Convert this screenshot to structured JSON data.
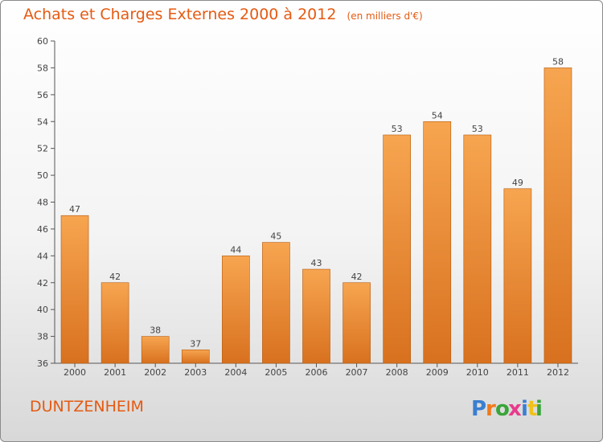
{
  "chart_data": {
    "type": "bar",
    "title": "Achats et Charges Externes 2000 à 2012",
    "subtitle": "(en milliers d'€)",
    "categories": [
      "2000",
      "2001",
      "2002",
      "2003",
      "2004",
      "2005",
      "2006",
      "2007",
      "2008",
      "2009",
      "2010",
      "2011",
      "2012"
    ],
    "values": [
      47,
      42,
      38,
      37,
      44,
      45,
      43,
      42,
      53,
      54,
      53,
      49,
      58
    ],
    "data_labels": [
      "47",
      "42",
      "38",
      "37",
      "44",
      "45",
      "43",
      "42",
      "53",
      "54",
      "53",
      "49",
      "58"
    ],
    "ylim": [
      36,
      60
    ],
    "yticks": [
      "36",
      "38",
      "40",
      "42",
      "44",
      "46",
      "48",
      "50",
      "52",
      "54",
      "56",
      "58",
      "60"
    ],
    "grid": false,
    "legend": "none",
    "bar_color_top": "#f7a550",
    "bar_color_bottom": "#d8711f",
    "bar_edge_color": "#b35a10"
  },
  "location": "DUNTZENHEIM",
  "logo": {
    "text": "Proxiti",
    "letter_colors": [
      "#3a7fd0",
      "#f07a1a",
      "#3aa53a",
      "#e83a8c",
      "#3a7fd0",
      "#f0c21a",
      "#3aa53a"
    ]
  },
  "colors": {
    "title": "#e55a12",
    "axis": "#555555"
  }
}
